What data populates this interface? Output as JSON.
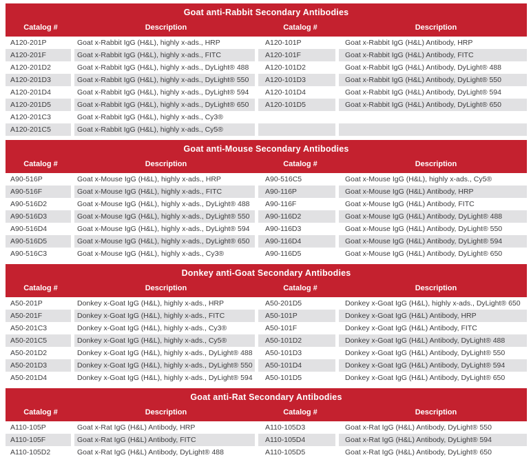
{
  "palette": {
    "accent_red": "#c4212f",
    "row_stripe_gray": "#e1e1e3",
    "body_text": "#3c3c3e",
    "header_text": "#ffffff"
  },
  "columns": [
    "Catalog #",
    "Description",
    "Catalog #",
    "Description"
  ],
  "sections": [
    {
      "title": "Goat anti-Rabbit Secondary Antibodies",
      "rows": [
        [
          "A120-201P",
          "Goat x-Rabbit IgG (H&L), highly x-ads., HRP",
          "A120-101P",
          "Goat x-Rabbit IgG (H&L) Antibody, HRP"
        ],
        [
          "A120-201F",
          "Goat x-Rabbit IgG (H&L), highly x-ads., FITC",
          "A120-101F",
          "Goat x-Rabbit IgG (H&L) Antibody, FITC"
        ],
        [
          "A120-201D2",
          "Goat x-Rabbit IgG (H&L), highly x-ads., DyLight® 488",
          "A120-101D2",
          "Goat x-Rabbit IgG (H&L) Antibody, DyLight® 488"
        ],
        [
          "A120-201D3",
          "Goat x-Rabbit IgG (H&L), highly x-ads., DyLight® 550",
          "A120-101D3",
          "Goat x-Rabbit IgG (H&L) Antibody, DyLight® 550"
        ],
        [
          "A120-201D4",
          "Goat x-Rabbit IgG (H&L), highly x-ads., DyLight® 594",
          "A120-101D4",
          "Goat x-Rabbit IgG (H&L) Antibody, DyLight® 594"
        ],
        [
          "A120-201D5",
          "Goat x-Rabbit IgG (H&L), highly x-ads., DyLight® 650",
          "A120-101D5",
          "Goat x-Rabbit IgG (H&L) Antibody, DyLight® 650"
        ],
        [
          "A120-201C3",
          "Goat x-Rabbit IgG (H&L), highly x-ads., Cy3®",
          "",
          ""
        ],
        [
          "A120-201C5",
          "Goat x-Rabbit IgG (H&L), highly x-ads., Cy5®",
          "",
          ""
        ]
      ]
    },
    {
      "title": "Goat anti-Mouse Secondary Antibodies",
      "rows": [
        [
          "A90-516P",
          "Goat x-Mouse IgG (H&L), highly x-ads., HRP",
          "A90-516C5",
          "Goat x-Mouse IgG (H&L), highly x-ads., Cy5®"
        ],
        [
          "A90-516F",
          "Goat x-Mouse IgG (H&L), highly x-ads., FITC",
          "A90-116P",
          "Goat x-Mouse IgG (H&L) Antibody, HRP"
        ],
        [
          "A90-516D2",
          "Goat x-Mouse IgG (H&L), highly x-ads., DyLight® 488",
          "A90-116F",
          "Goat x-Mouse IgG (H&L) Antibody, FITC"
        ],
        [
          "A90-516D3",
          "Goat x-Mouse IgG (H&L), highly x-ads., DyLight® 550",
          "A90-116D2",
          "Goat x-Mouse IgG (H&L) Antibody, DyLight® 488"
        ],
        [
          "A90-516D4",
          "Goat x-Mouse IgG (H&L), highly x-ads., DyLight® 594",
          "A90-116D3",
          "Goat x-Mouse IgG (H&L) Antibody, DyLight® 550"
        ],
        [
          "A90-516D5",
          "Goat x-Mouse IgG (H&L), highly x-ads., DyLight® 650",
          "A90-116D4",
          "Goat x-Mouse IgG (H&L) Antibody, DyLight® 594"
        ],
        [
          "A90-516C3",
          "Goat x-Mouse IgG (H&L), highly x-ads., Cy3®",
          "A90-116D5",
          "Goat x-Mouse IgG (H&L) Antibody, DyLight® 650"
        ]
      ]
    },
    {
      "title": "Donkey anti-Goat Secondary Antibodies",
      "rows": [
        [
          "A50-201P",
          "Donkey x-Goat IgG (H&L), highly x-ads., HRP",
          "A50-201D5",
          "Donkey x-Goat IgG (H&L), highly x-ads., DyLight® 650"
        ],
        [
          "A50-201F",
          "Donkey x-Goat IgG (H&L), highly x-ads., FITC",
          "A50-101P",
          "Donkey x-Goat IgG (H&L) Antibody, HRP"
        ],
        [
          "A50-201C3",
          "Donkey x-Goat IgG (H&L), highly x-ads., Cy3®",
          "A50-101F",
          "Donkey x-Goat IgG (H&L) Antibody, FITC"
        ],
        [
          "A50-201C5",
          "Donkey x-Goat IgG (H&L), highly x-ads., Cy5®",
          "A50-101D2",
          "Donkey x-Goat IgG (H&L) Antibody, DyLight® 488"
        ],
        [
          "A50-201D2",
          "Donkey x-Goat IgG (H&L), highly x-ads., DyLight® 488",
          "A50-101D3",
          "Donkey x-Goat IgG (H&L) Antibody, DyLight® 550"
        ],
        [
          "A50-201D3",
          "Donkey x-Goat IgG (H&L), highly x-ads., DyLight® 550",
          "A50-101D4",
          "Donkey x-Goat IgG (H&L) Antibody, DyLight® 594"
        ],
        [
          "A50-201D4",
          "Donkey x-Goat IgG (H&L), highly x-ads., DyLight® 594",
          "A50-101D5",
          "Donkey x-Goat IgG (H&L) Antibody, DyLight® 650"
        ]
      ]
    },
    {
      "title": "Goat anti-Rat Secondary Antibodies",
      "rows": [
        [
          "A110-105P",
          "Goat x-Rat IgG (H&L) Antibody, HRP",
          "A110-105D3",
          "Goat x-Rat IgG (H&L) Antibody, DyLight® 550"
        ],
        [
          "A110-105F",
          "Goat x-Rat IgG (H&L) Antibody, FITC",
          "A110-105D4",
          "Goat x-Rat IgG (H&L) Antibody, DyLight® 594"
        ],
        [
          "A110-105D2",
          "Goat x-Rat IgG (H&L) Antibody, DyLight® 488",
          "A110-105D5",
          "Goat x-Rat IgG (H&L) Antibody, DyLight® 650"
        ]
      ]
    }
  ]
}
